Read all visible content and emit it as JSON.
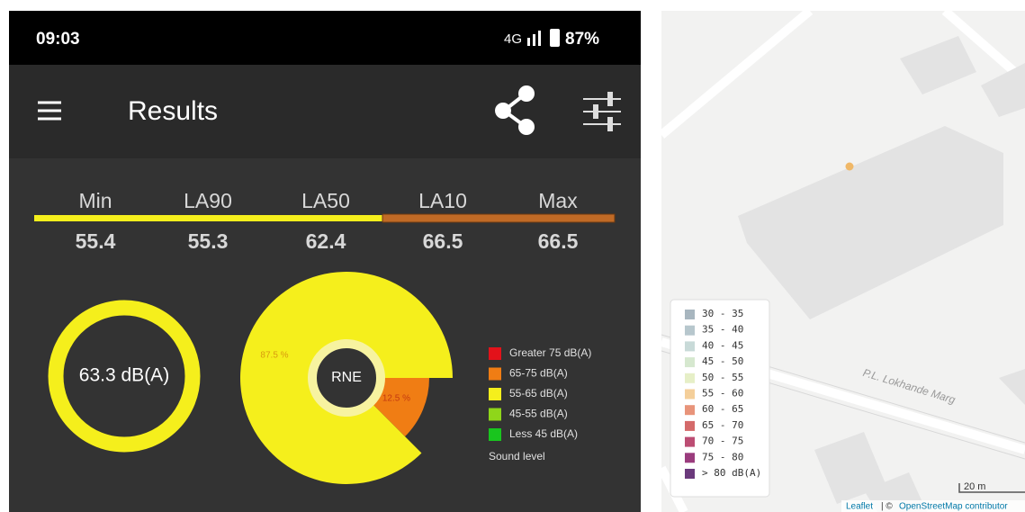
{
  "status_bar": {
    "time": "09:03",
    "network": "4G",
    "battery": "87%"
  },
  "app_bar": {
    "title": "Results"
  },
  "stats": [
    {
      "label": "Min",
      "value": 55.4
    },
    {
      "label": "LA90",
      "value": 55.3
    },
    {
      "label": "LA50",
      "value": 62.4
    },
    {
      "label": "LA10",
      "value": 66.5
    },
    {
      "label": "Max",
      "value": 66.5
    }
  ],
  "gauge": {
    "label": "63.3 dB(A)",
    "color": "#f5ef1c"
  },
  "pie": {
    "center_label": "RNE",
    "values": [
      87.5,
      12.5
    ],
    "value_labels": [
      "87.5 %",
      "12.5 %"
    ],
    "colors": [
      "#f5ef1c",
      "#f07d14"
    ]
  },
  "sound_legend": {
    "items": [
      {
        "label": "Greater 75 dB(A)",
        "color": "#e3121a"
      },
      {
        "label": "65-75 dB(A)",
        "color": "#f07d14"
      },
      {
        "label": "55-65 dB(A)",
        "color": "#f5ef1c"
      },
      {
        "label": "45-55 dB(A)",
        "color": "#8fd61a"
      },
      {
        "label": "Less 45 dB(A)",
        "color": "#19c51e"
      }
    ],
    "title": "Sound level"
  },
  "map": {
    "street": "P.L. Lokhande Marg",
    "scale": "20 m",
    "attribution": [
      "Leaflet",
      "| ©",
      "OpenStreetMap contributor"
    ],
    "legend": [
      {
        "label": "30 - 35",
        "color": "#a8b6bf"
      },
      {
        "label": "35 - 40",
        "color": "#b7c7cd"
      },
      {
        "label": "40 - 45",
        "color": "#c8dad8"
      },
      {
        "label": "45 - 50",
        "color": "#d6e8cf"
      },
      {
        "label": "50 - 55",
        "color": "#e6efc7"
      },
      {
        "label": "55 - 60",
        "color": "#f4cf9a"
      },
      {
        "label": "60 - 65",
        "color": "#e8947a"
      },
      {
        "label": "65 - 70",
        "color": "#d46a6a"
      },
      {
        "label": "70 - 75",
        "color": "#bc4d73"
      },
      {
        "label": "75 - 80",
        "color": "#9a3c7d"
      },
      {
        "label": "> 80 dB(A)",
        "color": "#6b3a7c"
      }
    ]
  }
}
